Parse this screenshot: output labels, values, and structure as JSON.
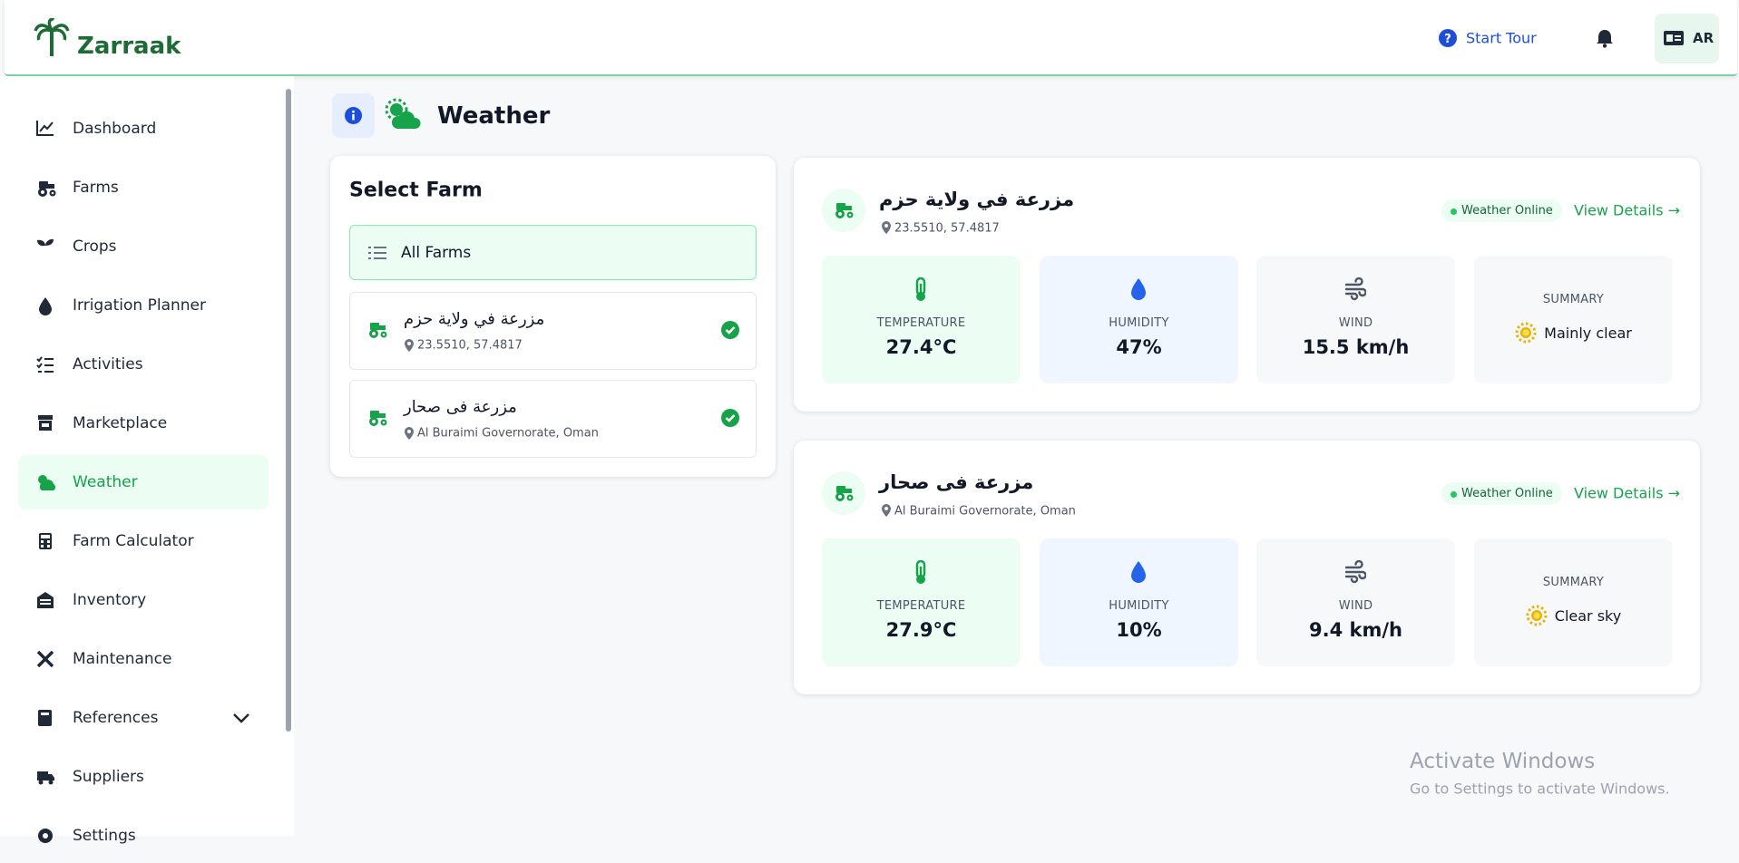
{
  "header": {
    "brand": "Zarraak",
    "start_tour": "Start Tour",
    "lang": "AR"
  },
  "sidebar": {
    "items": [
      "Dashboard",
      "Farms",
      "Crops",
      "Irrigation Planner",
      "Activities",
      "Marketplace",
      "Weather",
      "Farm Calculator",
      "Inventory",
      "Maintenance",
      "References",
      "Suppliers",
      "Settings"
    ]
  },
  "page": {
    "title": "Weather"
  },
  "select_farm": {
    "title": "Select Farm",
    "all_farms": "All Farms",
    "farms": [
      {
        "name": "مزرعة في ولاية حزم",
        "location": "23.5510, 57.4817"
      },
      {
        "name": "مزرعة فى صحار",
        "location": "Al Buraimi Governorate, Oman"
      }
    ]
  },
  "weather_cards": [
    {
      "name": "مزرعة في ولاية حزم",
      "location": "23.5510, 57.4817",
      "status": "Weather Online",
      "view_details": "View Details →",
      "stats": [
        {
          "label": "TEMPERATURE",
          "value": "27.4°C"
        },
        {
          "label": "HUMIDITY",
          "value": "47%"
        },
        {
          "label": "WIND",
          "value": "15.5 km/h"
        }
      ],
      "summary": {
        "label": "SUMMARY",
        "value": "Mainly clear"
      }
    },
    {
      "name": "مزرعة فى صحار",
      "location": "Al Buraimi Governorate, Oman",
      "status": "Weather Online",
      "view_details": "View Details →",
      "stats": [
        {
          "label": "TEMPERATURE",
          "value": "27.9°C"
        },
        {
          "label": "HUMIDITY",
          "value": "10%"
        },
        {
          "label": "WIND",
          "value": "9.4 km/h"
        }
      ],
      "summary": {
        "label": "SUMMARY",
        "value": "Clear sky"
      }
    }
  ],
  "watermark": {
    "title": "Activate Windows",
    "subtitle": "Go to Settings to activate Windows."
  }
}
